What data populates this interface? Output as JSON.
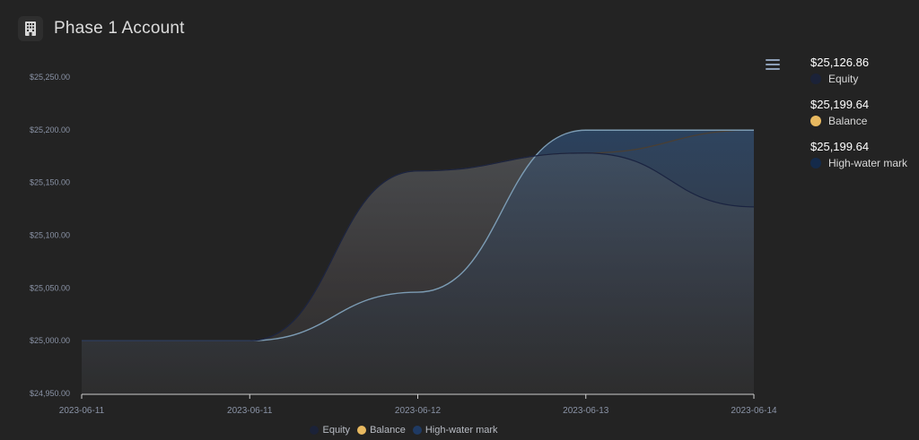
{
  "header": {
    "title": "Phase 1 Account",
    "icon": "building-icon"
  },
  "colors": {
    "equity": "#1a2340",
    "balance": "#e8b960",
    "hwm": "#1f3a63",
    "hwm_line": "#7c9cb4",
    "axis": "#8a93a6"
  },
  "summary": [
    {
      "value": "$25,126.86",
      "label": "Equity",
      "color": "#1b2238"
    },
    {
      "value": "$25,199.64",
      "label": "Balance",
      "color": "#e8b960"
    },
    {
      "value": "$25,199.64",
      "label": "High-water mark",
      "color": "#142a4a"
    }
  ],
  "legend": [
    "Equity",
    "Balance",
    "High-water mark"
  ],
  "chart_data": {
    "type": "area",
    "x": [
      "2023-06-11",
      "2023-06-11",
      "2023-06-12",
      "2023-06-13",
      "2023-06-14"
    ],
    "ylim": [
      24950,
      25250
    ],
    "yticks": [
      "$24,950.00",
      "$25,000.00",
      "$25,050.00",
      "$25,100.00",
      "$25,150.00",
      "$25,200.00",
      "$25,250.00"
    ],
    "series": [
      {
        "name": "Equity",
        "values": [
          25000,
          25000,
          25161,
          25178,
          25126.86
        ]
      },
      {
        "name": "Balance",
        "values": [
          25000,
          25000,
          25161,
          25178,
          25199.64
        ]
      },
      {
        "name": "High-water mark",
        "values": [
          25000,
          25000,
          25046,
          25199.64,
          25199.64
        ]
      }
    ],
    "grid": false,
    "legend_position": "bottom"
  }
}
